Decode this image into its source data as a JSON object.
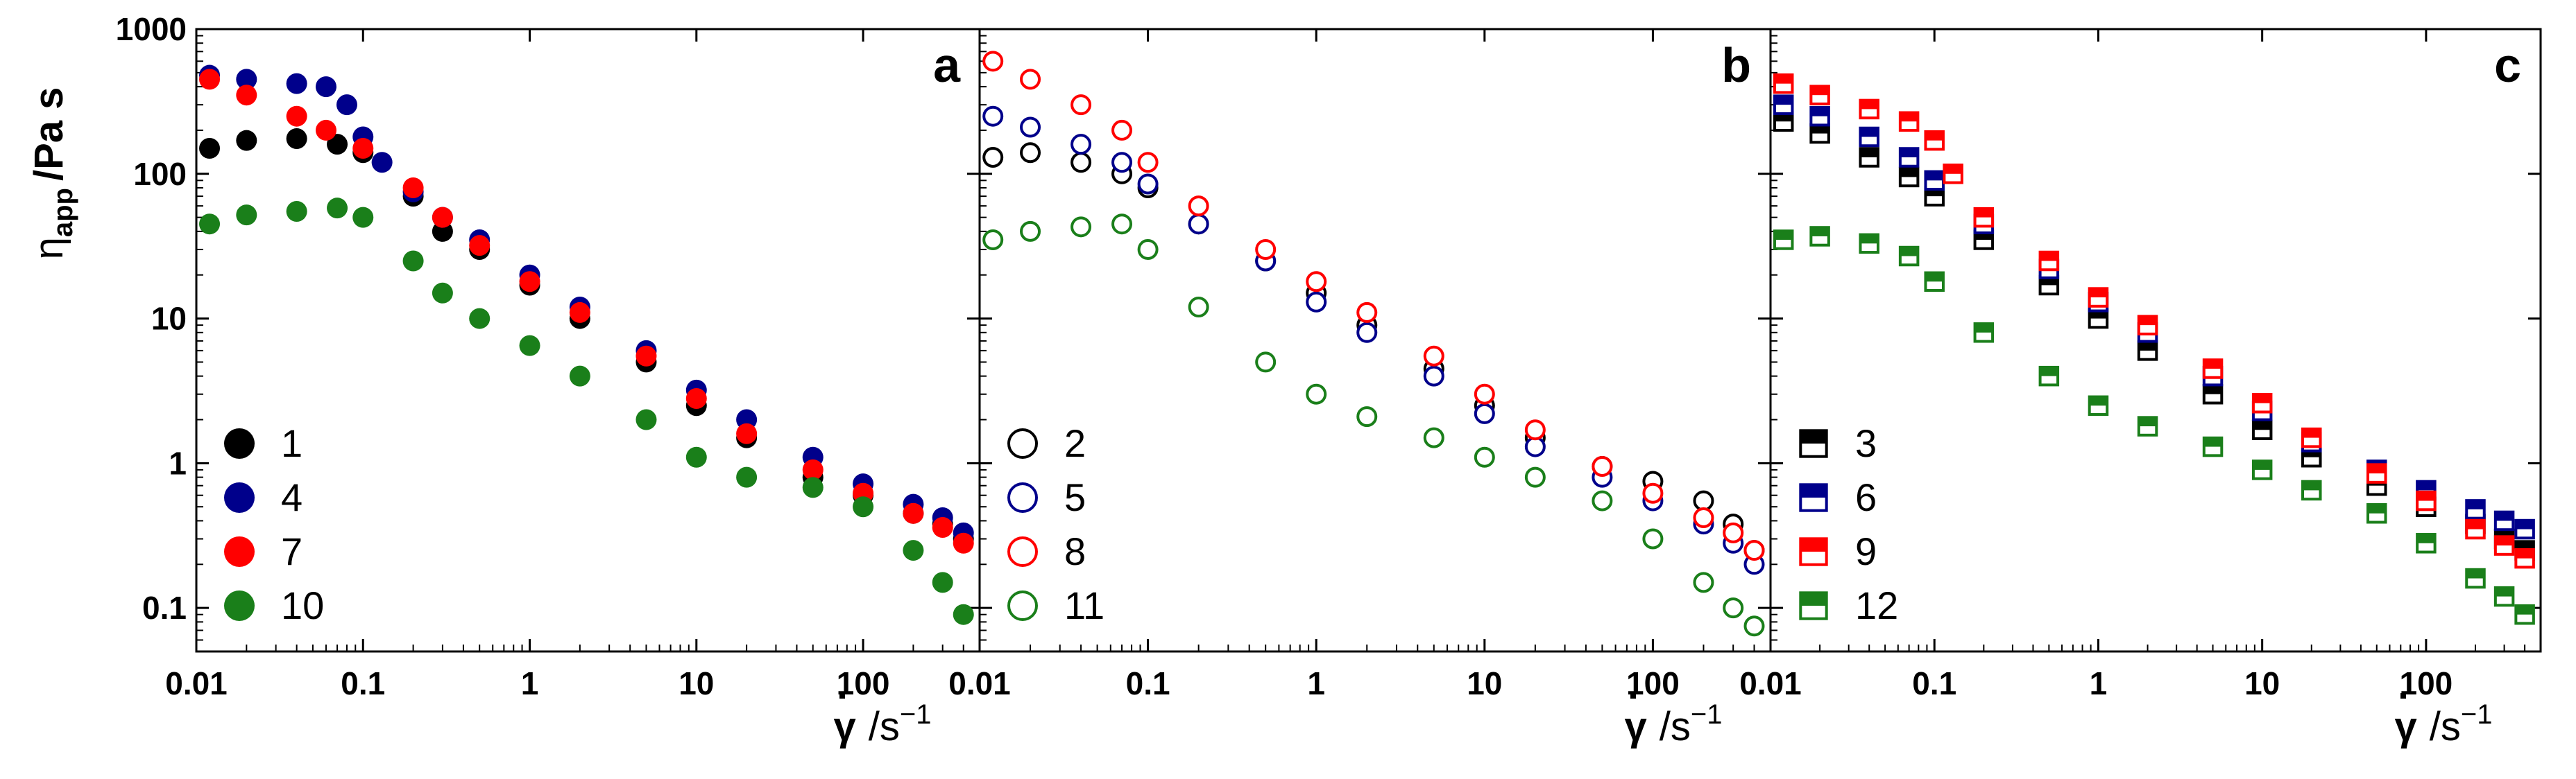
{
  "y_axis_title": {
    "symbol": "η",
    "subscript": "app",
    "unit": "/Pa s"
  },
  "x_axis_title": {
    "symbol": "γ",
    "unit": "/s",
    "exponent": "−1"
  },
  "chart_data": [
    {
      "type": "scatter",
      "panel": "a",
      "xscale": "log",
      "yscale": "log",
      "xlim": [
        0.01,
        500
      ],
      "ylim": [
        0.05,
        1000
      ],
      "xticks": [
        "0.01",
        "0.1",
        "1",
        "10",
        "100"
      ],
      "yticks": [
        "0.1",
        "1",
        "10",
        "100",
        "1000"
      ],
      "legend_placement": "bottom-left",
      "series": [
        {
          "name": "1",
          "color": "#000000",
          "marker": "circle-filled",
          "x": [
            0.012,
            0.02,
            0.04,
            0.07,
            0.1,
            0.2,
            0.3,
            0.5,
            1,
            2,
            5,
            10,
            20,
            50,
            100,
            200,
            300,
            400
          ],
          "y": [
            150,
            170,
            175,
            160,
            140,
            70,
            40,
            30,
            17,
            10,
            5,
            2.5,
            1.5,
            0.8,
            0.6,
            0.45,
            0.38,
            0.3
          ]
        },
        {
          "name": "4",
          "color": "#00008B",
          "marker": "circle-filled",
          "x": [
            0.012,
            0.02,
            0.04,
            0.06,
            0.08,
            0.1,
            0.13,
            0.2,
            0.3,
            0.5,
            1,
            2,
            5,
            10,
            20,
            50,
            100,
            200,
            300,
            400
          ],
          "y": [
            480,
            450,
            420,
            400,
            300,
            180,
            120,
            75,
            50,
            35,
            20,
            12,
            6,
            3.2,
            2.0,
            1.1,
            0.72,
            0.52,
            0.42,
            0.33
          ]
        },
        {
          "name": "7",
          "color": "#FF0000",
          "marker": "circle-filled",
          "x": [
            0.012,
            0.02,
            0.04,
            0.06,
            0.1,
            0.2,
            0.3,
            0.5,
            1,
            2,
            5,
            10,
            20,
            50,
            100,
            200,
            300,
            400
          ],
          "y": [
            450,
            350,
            250,
            200,
            150,
            80,
            50,
            32,
            18,
            11,
            5.5,
            2.8,
            1.6,
            0.9,
            0.62,
            0.45,
            0.36,
            0.28
          ]
        },
        {
          "name": "10",
          "color": "#1A7F1A",
          "marker": "circle-filled",
          "x": [
            0.012,
            0.02,
            0.04,
            0.07,
            0.1,
            0.2,
            0.3,
            0.5,
            1,
            2,
            5,
            10,
            20,
            50,
            100,
            200,
            300,
            400
          ],
          "y": [
            45,
            52,
            55,
            58,
            50,
            25,
            15,
            10,
            6.5,
            4,
            2,
            1.1,
            0.8,
            0.68,
            0.5,
            0.25,
            0.15,
            0.09
          ]
        }
      ]
    },
    {
      "type": "scatter",
      "panel": "b",
      "xscale": "log",
      "yscale": "log",
      "xlim": [
        0.01,
        500
      ],
      "ylim": [
        0.05,
        1000
      ],
      "xticks": [
        "0.01",
        "0.1",
        "1",
        "10",
        "100"
      ],
      "yticks": [
        "0.1",
        "1",
        "10",
        "100",
        "1000"
      ],
      "legend_placement": "bottom-left",
      "series": [
        {
          "name": "2",
          "color": "#000000",
          "marker": "circle-open",
          "x": [
            0.012,
            0.02,
            0.04,
            0.07,
            0.1,
            0.2,
            0.5,
            1,
            2,
            5,
            10,
            20,
            50,
            100,
            200,
            300,
            400
          ],
          "y": [
            130,
            140,
            120,
            100,
            80,
            45,
            25,
            15,
            9,
            4.5,
            2.5,
            1.5,
            0.95,
            0.75,
            0.55,
            0.38,
            0.25
          ]
        },
        {
          "name": "5",
          "color": "#00008B",
          "marker": "circle-open",
          "x": [
            0.012,
            0.02,
            0.04,
            0.07,
            0.1,
            0.2,
            0.5,
            1,
            2,
            5,
            10,
            20,
            50,
            100,
            200,
            300,
            400
          ],
          "y": [
            250,
            210,
            160,
            120,
            85,
            45,
            25,
            13,
            8,
            4,
            2.2,
            1.3,
            0.8,
            0.55,
            0.38,
            0.28,
            0.2
          ]
        },
        {
          "name": "8",
          "color": "#FF0000",
          "marker": "circle-open",
          "x": [
            0.012,
            0.02,
            0.04,
            0.07,
            0.1,
            0.2,
            0.5,
            1,
            2,
            5,
            10,
            20,
            50,
            100,
            200,
            300,
            400
          ],
          "y": [
            600,
            450,
            300,
            200,
            120,
            60,
            30,
            18,
            11,
            5.5,
            3,
            1.7,
            0.95,
            0.62,
            0.42,
            0.33,
            0.25
          ]
        },
        {
          "name": "11",
          "color": "#1A7F1A",
          "marker": "circle-open",
          "x": [
            0.012,
            0.02,
            0.04,
            0.07,
            0.1,
            0.2,
            0.5,
            1,
            2,
            5,
            10,
            20,
            50,
            100,
            200,
            300,
            400
          ],
          "y": [
            35,
            40,
            43,
            45,
            30,
            12,
            5,
            3,
            2.1,
            1.5,
            1.1,
            0.8,
            0.55,
            0.3,
            0.15,
            0.1,
            0.075
          ]
        }
      ]
    },
    {
      "type": "scatter",
      "panel": "c",
      "xscale": "log",
      "yscale": "log",
      "xlim": [
        0.01,
        500
      ],
      "ylim": [
        0.05,
        1000
      ],
      "xticks": [
        "0.01",
        "0.1",
        "1",
        "10",
        "100"
      ],
      "yticks": [
        "0.1",
        "1",
        "10",
        "100",
        "1000"
      ],
      "legend_placement": "bottom-left",
      "series": [
        {
          "name": "3",
          "color": "#000000",
          "marker": "square-half",
          "x": [
            0.012,
            0.02,
            0.04,
            0.07,
            0.1,
            0.2,
            0.5,
            1,
            2,
            5,
            10,
            20,
            50,
            100,
            200,
            300,
            400
          ],
          "y": [
            230,
            190,
            130,
            95,
            70,
            35,
            17,
            10,
            6,
            3,
            1.7,
            1.1,
            0.7,
            0.5,
            0.38,
            0.3,
            0.25
          ]
        },
        {
          "name": "6",
          "color": "#00008B",
          "marker": "square-half",
          "x": [
            0.012,
            0.02,
            0.04,
            0.07,
            0.1,
            0.2,
            0.5,
            1,
            2,
            5,
            10,
            20,
            50,
            100,
            200,
            300,
            400
          ],
          "y": [
            300,
            250,
            180,
            130,
            90,
            45,
            22,
            13,
            8,
            4,
            2.3,
            1.4,
            0.9,
            0.65,
            0.48,
            0.4,
            0.35
          ]
        },
        {
          "name": "9",
          "color": "#FF0000",
          "marker": "square-half",
          "x": [
            0.012,
            0.02,
            0.04,
            0.07,
            0.1,
            0.13,
            0.2,
            0.5,
            1,
            2,
            5,
            10,
            20,
            50,
            100,
            200,
            300,
            400
          ],
          "y": [
            420,
            350,
            280,
            230,
            170,
            100,
            50,
            25,
            14,
            9,
            4.5,
            2.6,
            1.5,
            0.85,
            0.55,
            0.35,
            0.27,
            0.22
          ]
        },
        {
          "name": "12",
          "color": "#1A7F1A",
          "marker": "square-half",
          "x": [
            0.012,
            0.02,
            0.04,
            0.07,
            0.1,
            0.2,
            0.5,
            1,
            2,
            5,
            10,
            20,
            50,
            100,
            200,
            300,
            400
          ],
          "y": [
            35,
            37,
            33,
            27,
            18,
            8,
            4,
            2.5,
            1.8,
            1.3,
            0.9,
            0.65,
            0.45,
            0.28,
            0.16,
            0.12,
            0.09
          ]
        }
      ]
    }
  ]
}
